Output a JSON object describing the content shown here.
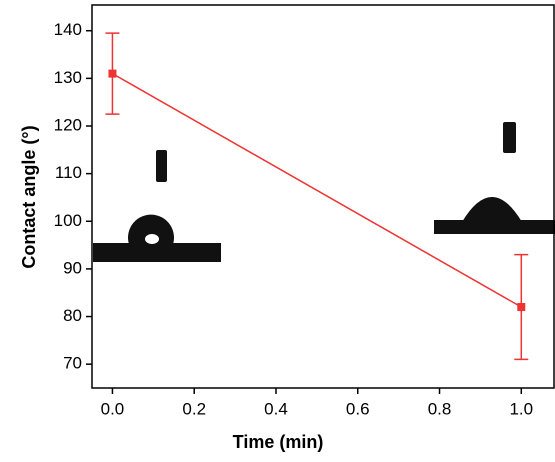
{
  "chart_data": {
    "type": "line",
    "x_label": "Time (min)",
    "y_label": "Contact angle (°)",
    "x": [
      0.0,
      1.0
    ],
    "series": [
      {
        "color": "#ee3333",
        "values": [
          131,
          82
        ],
        "errors": [
          8.5,
          11
        ]
      }
    ],
    "xlim": [
      -0.05,
      1.08
    ],
    "ylim": [
      65,
      145.4
    ],
    "xticks": [
      {
        "value": 0,
        "label": "0.0"
      },
      0.2,
      0.4,
      0.6,
      0.8,
      {
        "value": 1,
        "label": "1.0"
      }
    ],
    "yticks": [
      70,
      80,
      90,
      100,
      110,
      120,
      130,
      140
    ]
  }
}
